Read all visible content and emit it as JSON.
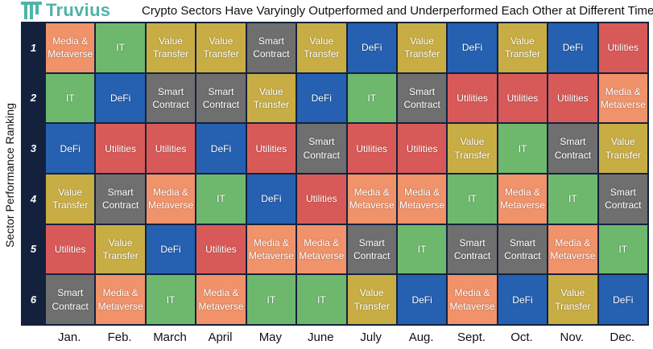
{
  "header": {
    "logo_text": "Truvius",
    "logo_color": "#4fb3a9",
    "title": "Crypto Sectors Have Varyingly Outperformed and Underperformed Each Other at Different Times"
  },
  "colors": {
    "grid_background": "#14213d",
    "Media & Metaverse": "#f0926a",
    "IT": "#6db86d",
    "Value Transfer": "#c8ad45",
    "Smart Contract": "#6f6f6f",
    "DeFi": "#2660b0",
    "Utilities": "#d85a58"
  },
  "chart_data": {
    "type": "table",
    "title": "Crypto Sectors Have Varyingly Outperformed and Underperformed Each Other at Different Times",
    "ylabel": "Sector Performance Ranking",
    "xlabel": "",
    "legend": "none",
    "months": [
      "Jan.",
      "Feb.",
      "March",
      "April",
      "May",
      "June",
      "July",
      "Aug.",
      "Sept.",
      "Oct.",
      "Nov.",
      "Dec."
    ],
    "ranks": [
      "1",
      "2",
      "3",
      "4",
      "5",
      "6"
    ],
    "rows": [
      [
        "Media & Metaverse",
        "IT",
        "Value Transfer",
        "Value Transfer",
        "Smart Contract",
        "Value Transfer",
        "DeFi",
        "Value Transfer",
        "DeFi",
        "Value Transfer",
        "DeFi",
        "Utilities"
      ],
      [
        "IT",
        "DeFi",
        "Smart Contract",
        "Smart Contract",
        "Value Transfer",
        "DeFi",
        "IT",
        "Smart Contract",
        "Utilities",
        "Utilities",
        "Utilities",
        "Media & Metaverse"
      ],
      [
        "DeFi",
        "Utilities",
        "Utilities",
        "DeFi",
        "Utilities",
        "Smart Contract",
        "Utilities",
        "Utilities",
        "Value Transfer",
        "IT",
        "Smart Contract",
        "Value Transfer"
      ],
      [
        "Value Transfer",
        "Smart Contract",
        "Media & Metaverse",
        "IT",
        "DeFi",
        "Utilities",
        "Media & Metaverse",
        "Media & Metaverse",
        "IT",
        "Media & Metaverse",
        "IT",
        "Smart Contract"
      ],
      [
        "Utilities",
        "Value Transfer",
        "DeFi",
        "Utilities",
        "Media & Metaverse",
        "Media & Metaverse",
        "Smart Contract",
        "IT",
        "Smart Contract",
        "Smart Contract",
        "Media & Metaverse",
        "IT"
      ],
      [
        "Smart Contract",
        "Media & Metaverse",
        "IT",
        "Media & Metaverse",
        "IT",
        "IT",
        "Value Transfer",
        "DeFi",
        "Media & Metaverse",
        "DeFi",
        "Value Transfer",
        "DeFi"
      ]
    ]
  }
}
